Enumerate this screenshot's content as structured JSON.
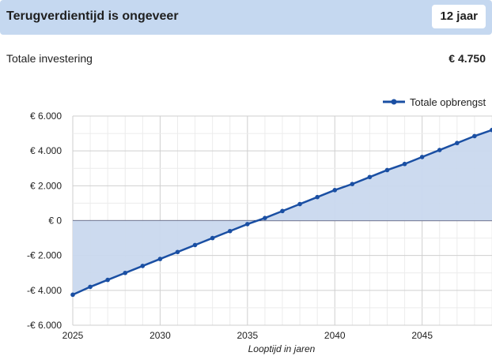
{
  "summary": {
    "payback_label": "Terugverdientijd is ongeveer",
    "payback_value": "12 jaar",
    "investment_label": "Totale investering",
    "investment_value": "€ 4.750"
  },
  "colors": {
    "banner": "#c5d8f0",
    "line": "#1a4fa3",
    "area": "#c9d8ee",
    "zero_line": "#3a3a5a",
    "grid": "#e3e3e3"
  },
  "chart_data": {
    "type": "area",
    "xlabel": "Looptijd in jaren",
    "ylabel": "",
    "xlim": [
      2025,
      2049
    ],
    "ylim": [
      -6000,
      6000
    ],
    "x_ticks": [
      2025,
      2030,
      2035,
      2040,
      2045
    ],
    "y_ticks": [
      6000,
      4000,
      2000,
      0,
      -2000,
      -4000,
      -6000
    ],
    "y_tick_labels": [
      "€ 6.000",
      "€ 4.000",
      "€ 2.000",
      "€ 0",
      "-€ 2.000",
      "-€ 4.000",
      "-€ 6.000"
    ],
    "legend_position": "top-right",
    "grid": true,
    "x": [
      2025,
      2026,
      2027,
      2028,
      2029,
      2030,
      2031,
      2032,
      2033,
      2034,
      2035,
      2036,
      2037,
      2038,
      2039,
      2040,
      2041,
      2042,
      2043,
      2044,
      2045,
      2046,
      2047,
      2048,
      2049
    ],
    "series": [
      {
        "name": "Totale opbrengst",
        "values": [
          -4250,
          -3800,
          -3400,
          -3000,
          -2600,
          -2200,
          -1800,
          -1400,
          -1000,
          -600,
          -200,
          150,
          550,
          950,
          1350,
          1750,
          2100,
          2500,
          2900,
          3250,
          3650,
          4050,
          4450,
          4850,
          5200
        ]
      }
    ]
  }
}
